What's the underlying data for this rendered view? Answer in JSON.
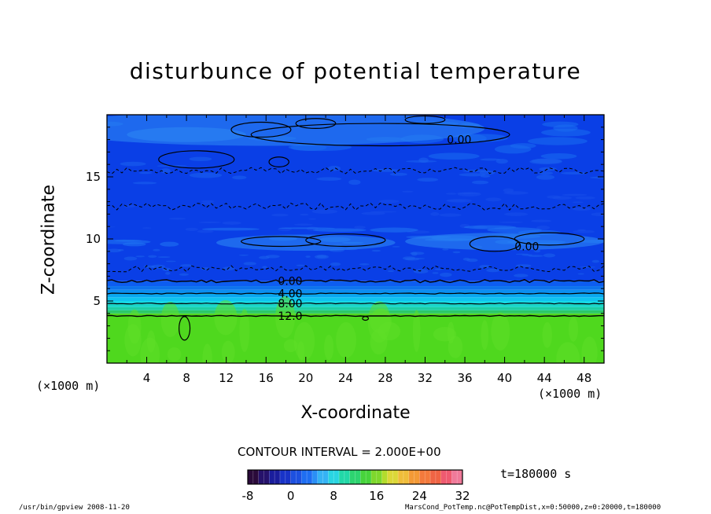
{
  "title": "disturbunce of potential temperature",
  "contour_interval_text": "CONTOUR INTERVAL = 2.000E+00",
  "time_label": "t=180000 s",
  "footer_left": "/usr/bin/gpview  2008-11-20",
  "footer_right": "MarsCond_PotTemp.nc@PotTempDist,x=0:50000,z=0:20000,t=180000",
  "chart_data": {
    "type": "heatmap",
    "title": "disturbunce of potential temperature",
    "xlabel": "X-coordinate",
    "ylabel": "Z-coordinate",
    "x_unit_left": "(×1000 m)",
    "x_unit_right": "(×1000 m)",
    "xlim": [
      0,
      50
    ],
    "ylim": [
      0,
      20
    ],
    "x_ticks": [
      4,
      8,
      12,
      16,
      20,
      24,
      28,
      32,
      36,
      40,
      44,
      48
    ],
    "y_ticks": [
      5,
      10,
      15
    ],
    "contour_labels": [
      {
        "text": "0.00",
        "x": 34.2,
        "z": 18.0
      },
      {
        "text": "0.00",
        "x": 41.0,
        "z": 9.4
      },
      {
        "text": "0.00",
        "x": 17.2,
        "z": 6.6
      },
      {
        "text": "4.00",
        "x": 17.2,
        "z": 5.6
      },
      {
        "text": "8.00",
        "x": 17.2,
        "z": 4.8
      },
      {
        "text": "12.0",
        "x": 17.2,
        "z": 3.8
      }
    ],
    "layers": [
      {
        "z0": 0,
        "z1": 4.0,
        "color": "#4fd81e"
      },
      {
        "z0": 4.0,
        "z1": 4.25,
        "color": "#2bc868"
      },
      {
        "z0": 4.25,
        "z1": 4.5,
        "color": "#1ecfa5"
      },
      {
        "z0": 4.5,
        "z1": 4.75,
        "color": "#19d6c8"
      },
      {
        "z0": 4.75,
        "z1": 5.0,
        "color": "#17d8e6"
      },
      {
        "z0": 5.0,
        "z1": 5.3,
        "color": "#0fc3f0"
      },
      {
        "z0": 5.3,
        "z1": 5.6,
        "color": "#0aa8f0"
      },
      {
        "z0": 5.6,
        "z1": 5.9,
        "color": "#0b8ef0"
      },
      {
        "z0": 5.9,
        "z1": 6.2,
        "color": "#0d74ee"
      },
      {
        "z0": 6.2,
        "z1": 6.6,
        "color": "#0d5df0"
      },
      {
        "z0": 6.6,
        "z1": 20,
        "color": "#0a3fe6"
      }
    ],
    "colorbar": {
      "ticks": [
        -8,
        0,
        8,
        16,
        24,
        32
      ],
      "min": -8,
      "max": 32,
      "colors": [
        "#2a0a3a",
        "#26126b",
        "#1a1d9c",
        "#1833c8",
        "#1d50e0",
        "#1e6ef2",
        "#2a8ff6",
        "#35b3f5",
        "#29d5e2",
        "#22d8a8",
        "#2dd470",
        "#47d43b",
        "#7ed82c",
        "#b3dc2c",
        "#dcd838",
        "#f0bd3a",
        "#f49a36",
        "#f47a3c",
        "#f06444",
        "#ef5a70",
        "#f07a9a"
      ]
    }
  }
}
